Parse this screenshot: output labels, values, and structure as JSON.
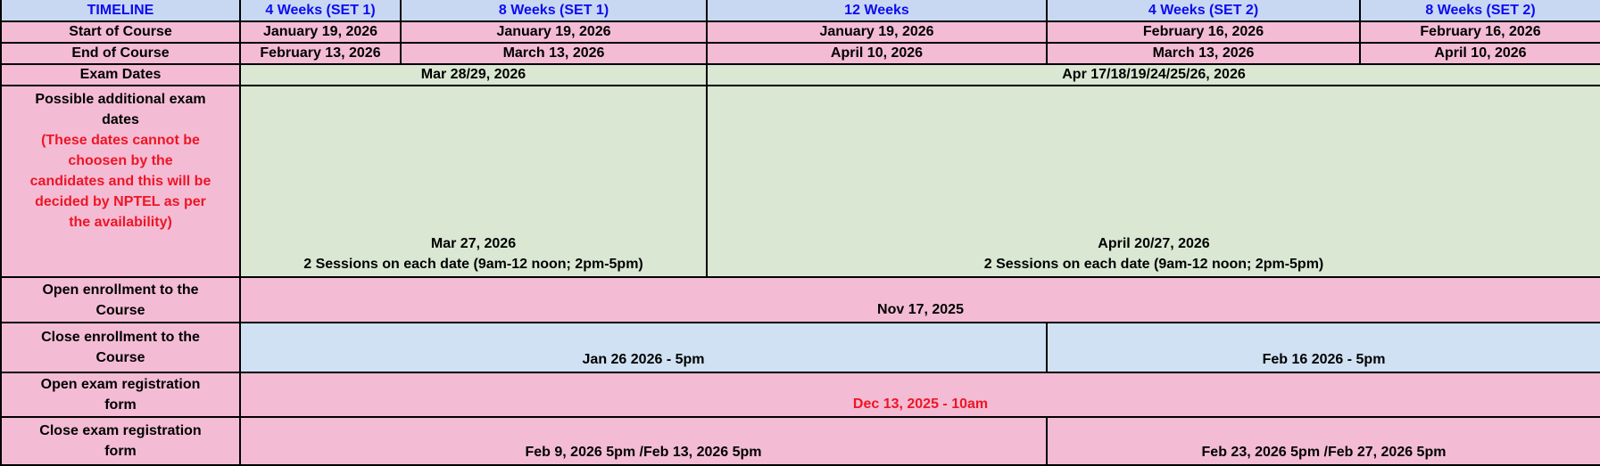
{
  "colors": {
    "header_bg": "#c9d8f2",
    "header_text": "#0b0bf0",
    "pink_bg": "#f3bcd4",
    "green_bg": "#d9e7d3",
    "blue_bg": "#cfe1f2",
    "red_text": "#ee1526"
  },
  "table": {
    "header_cells": [
      "TIMELINE",
      "4 Weeks (SET 1)",
      "8 Weeks (SET 1)",
      "12 Weeks",
      "4 Weeks (SET 2)",
      "8 Weeks (SET 2)"
    ],
    "start_of_course": {
      "label": "Start of Course",
      "values": [
        "January 19, 2026",
        "January 19, 2026",
        "January 19, 2026",
        "February 16, 2026",
        "February 16, 2026"
      ]
    },
    "end_of_course": {
      "label": "End of Course",
      "values": [
        "February 13, 2026",
        "March 13, 2026",
        "April 10, 2026",
        "March 13, 2026",
        "April 10, 2026"
      ]
    },
    "exam_dates": {
      "label": "Exam Dates",
      "set1": "Mar 28/29, 2026",
      "set2": "Apr 17/18/19/24/25/26, 2026"
    },
    "additional_exam_dates": {
      "label_lines": [
        "Possible additional exam",
        "dates"
      ],
      "note_lines": [
        "(These dates cannot be",
        "choosen by the",
        "candidates and this will be",
        "decided by NPTEL as per",
        "the availability)"
      ],
      "set1_date": "Mar 27, 2026",
      "set1_sessions": "2 Sessions on each date (9am-12 noon; 2pm-5pm)",
      "set2_date": "April 20/27, 2026",
      "set2_sessions": "2 Sessions on each date (9am-12 noon; 2pm-5pm)"
    },
    "open_enrollment": {
      "label_lines": [
        "Open enrollment to the",
        "Course"
      ],
      "value": "Nov 17, 2025"
    },
    "close_enrollment": {
      "label_lines": [
        "Close enrollment to the",
        "Course"
      ],
      "set1": "Jan 26 2026 - 5pm",
      "set2": "Feb 16 2026 - 5pm"
    },
    "open_exam_registration": {
      "label_lines": [
        "Open exam registration",
        "form"
      ],
      "value": "Dec 13, 2025 - 10am"
    },
    "close_exam_registration": {
      "label_lines": [
        "Close exam registration",
        "form"
      ],
      "set1": "Feb 9, 2026 5pm /Feb 13, 2026 5pm",
      "set2": "Feb 23, 2026 5pm /Feb 27, 2026 5pm"
    }
  }
}
